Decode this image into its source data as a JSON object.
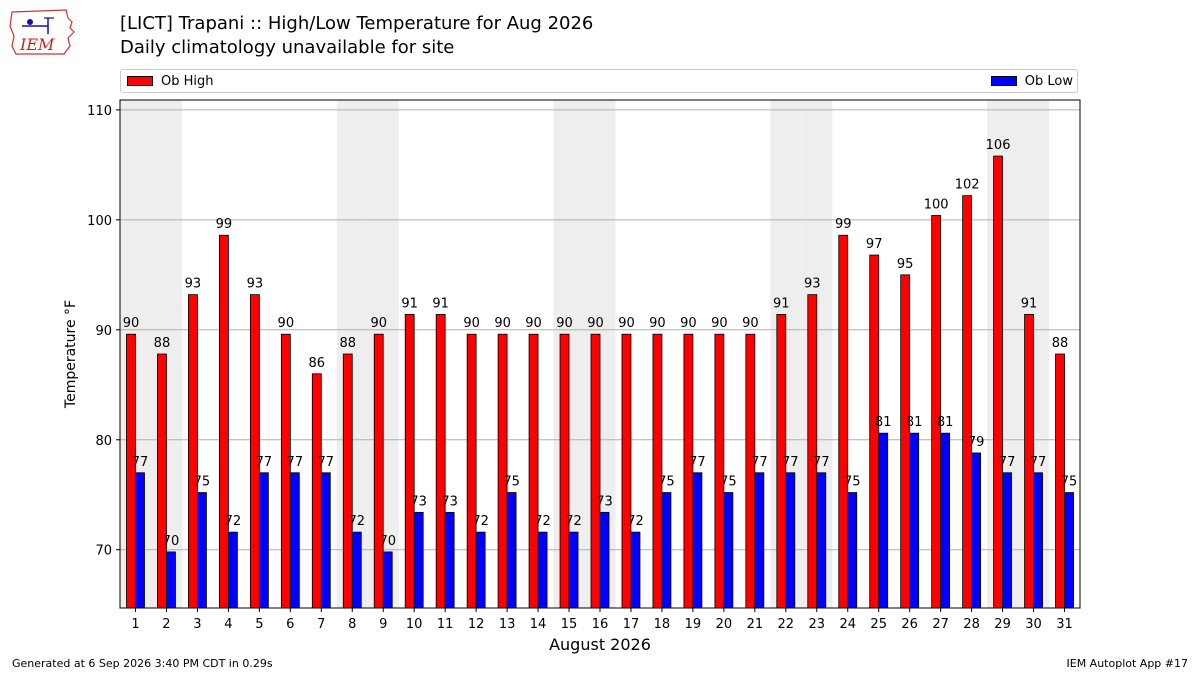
{
  "header": {
    "logo_text": "IEM",
    "title": "[LICT] Trapani :: High/Low Temperature for Aug 2026",
    "subtitle": "Daily climatology unavailable for site"
  },
  "footer": {
    "generated": "Generated at 6 Sep 2026 3:40 PM CDT in 0.29s",
    "app": "IEM Autoplot App #17"
  },
  "colors": {
    "high": "#ff0000",
    "low": "#0000ff",
    "weekend_band": "#eeeeee",
    "grid": "#b0b0b0"
  },
  "chart_data": {
    "type": "bar",
    "xlabel": "August 2026",
    "ylabel": "Temperature °F",
    "ylim": [
      64.7,
      110.9
    ],
    "yticks": [
      70,
      80,
      90,
      100,
      110
    ],
    "grid": "horizontal",
    "legend_placement": "top",
    "categories": [
      "1",
      "2",
      "3",
      "4",
      "5",
      "6",
      "7",
      "8",
      "9",
      "10",
      "11",
      "12",
      "13",
      "14",
      "15",
      "16",
      "17",
      "18",
      "19",
      "20",
      "21",
      "22",
      "23",
      "24",
      "25",
      "26",
      "27",
      "28",
      "29",
      "30",
      "31"
    ],
    "weekend_days": [
      1,
      2,
      8,
      9,
      15,
      16,
      22,
      23,
      29,
      30
    ],
    "series": [
      {
        "name": "Ob High",
        "values": [
          89.6,
          87.8,
          93.2,
          98.6,
          93.2,
          89.6,
          86.0,
          87.8,
          89.6,
          91.4,
          91.4,
          89.6,
          89.6,
          89.6,
          89.6,
          89.6,
          89.6,
          89.6,
          89.6,
          89.6,
          89.6,
          91.4,
          93.2,
          98.6,
          96.8,
          95.0,
          100.4,
          102.2,
          105.8,
          91.4,
          87.8
        ],
        "labels": [
          "90",
          "88",
          "93",
          "99",
          "93",
          "90",
          "86",
          "88",
          "90",
          "91",
          "91",
          "90",
          "90",
          "90",
          "90",
          "90",
          "90",
          "90",
          "90",
          "90",
          "90",
          "91",
          "93",
          "99",
          "97",
          "95",
          "100",
          "102",
          "106",
          "91",
          "88"
        ]
      },
      {
        "name": "Ob Low",
        "values": [
          77.0,
          69.8,
          75.2,
          71.6,
          77.0,
          77.0,
          77.0,
          71.6,
          69.8,
          73.4,
          73.4,
          71.6,
          75.2,
          71.6,
          71.6,
          73.4,
          71.6,
          75.2,
          77.0,
          75.2,
          77.0,
          77.0,
          77.0,
          75.2,
          80.6,
          80.6,
          80.6,
          78.8,
          77.0,
          77.0,
          75.2
        ],
        "labels": [
          "77",
          "70",
          "75",
          "72",
          "77",
          "77",
          "77",
          "72",
          "70",
          "73",
          "73",
          "72",
          "75",
          "72",
          "72",
          "73",
          "72",
          "75",
          "77",
          "75",
          "77",
          "77",
          "77",
          "75",
          "81",
          "81",
          "81",
          "79",
          "77",
          "77",
          "75"
        ]
      }
    ]
  }
}
